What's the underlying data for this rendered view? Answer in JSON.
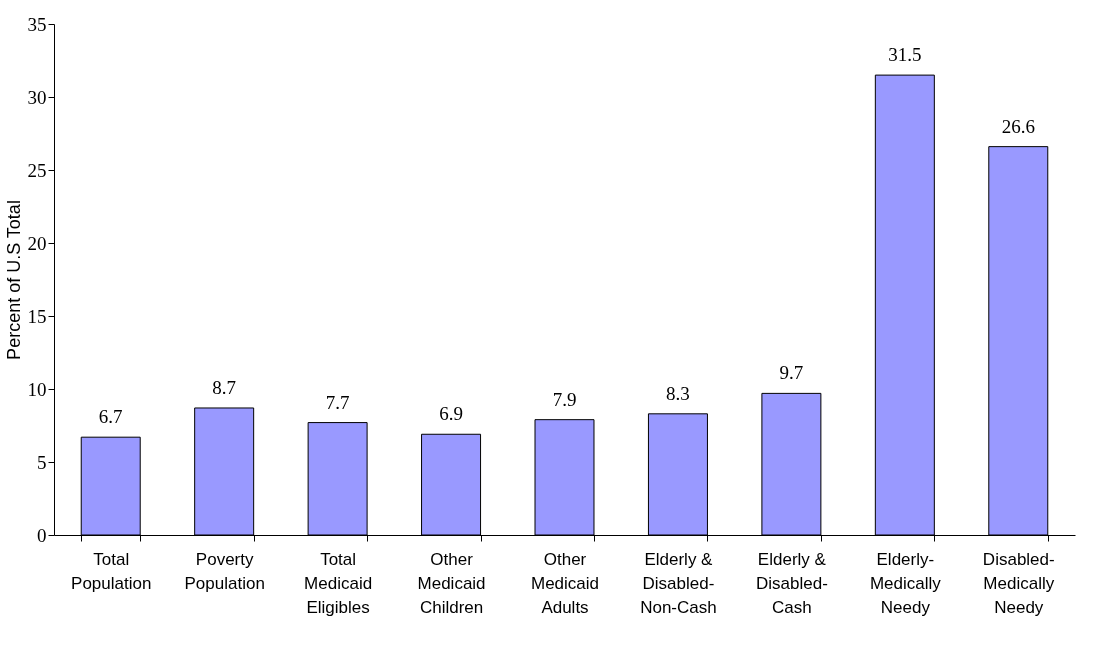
{
  "chart_data": {
    "type": "bar",
    "ylabel": "Percent of U.S Total",
    "categories": [
      "Total\nPopulation",
      "Poverty\nPopulation",
      "Total\nMedicaid\nEligibles",
      "Other\nMedicaid\nChildren",
      "Other\nMedicaid\nAdults",
      "Elderly &\nDisabled-\nNon-Cash",
      "Elderly &\nDisabled-\nCash",
      "Elderly-\nMedically\nNeedy",
      "Disabled-\nMedically\nNeedy"
    ],
    "values": [
      6.7,
      8.7,
      7.7,
      6.9,
      7.9,
      8.3,
      9.7,
      31.5,
      26.6
    ],
    "color": "#9999ff",
    "ylim": [
      0,
      35
    ],
    "yticks": [
      0,
      5,
      10,
      15,
      20,
      25,
      30,
      35
    ],
    "grid": false,
    "data_labels": true
  }
}
